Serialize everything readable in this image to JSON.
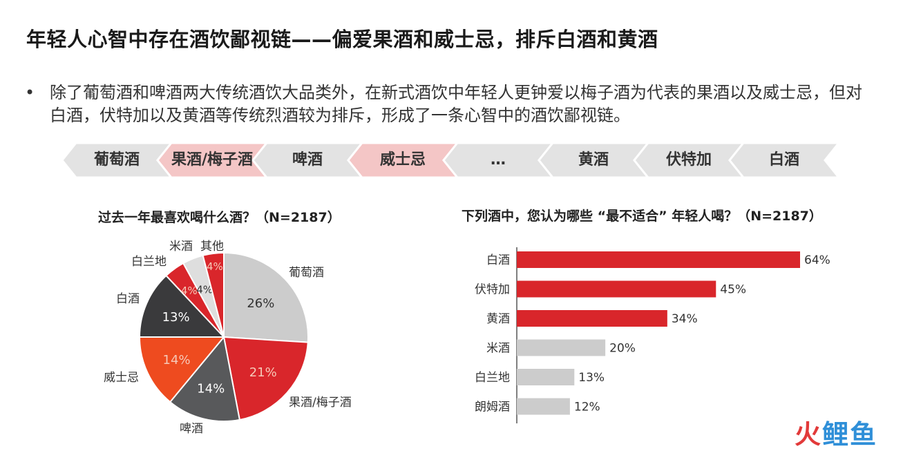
{
  "header": {
    "title": "年轻人心智中存在酒饮鄙视链——偏爱果酒和威士忌，排斥白酒和黄酒"
  },
  "intro": {
    "bullet_symbol": "•",
    "text": "除了葡萄酒和啤酒两大传统酒饮大品类外，在新式酒饮中年轻人更钟爱以梅子酒为代表的果酒以及威士忌，但对白酒，伏特加以及黄酒等传统烈酒较为排斥，形成了一条心智中的酒饮鄙视链。"
  },
  "chain": {
    "items": [
      {
        "label": "葡萄酒",
        "highlight": false
      },
      {
        "label": "果酒/梅子酒",
        "highlight": true
      },
      {
        "label": "啤酒",
        "highlight": false
      },
      {
        "label": "威士忌",
        "highlight": true
      },
      {
        "label": "…",
        "highlight": false
      },
      {
        "label": "黄酒",
        "highlight": false
      },
      {
        "label": "伏特加",
        "highlight": false
      },
      {
        "label": "白酒",
        "highlight": false
      }
    ],
    "colors": {
      "normal": "#e3e3e3",
      "highlight": "#f4c6c6"
    }
  },
  "chart_data": [
    {
      "type": "pie",
      "title": "过去一年最喜欢喝什么酒？（N=2187）",
      "slices": [
        {
          "label": "葡萄酒",
          "value": 26,
          "value_label": "26%",
          "color": "#cccccc"
        },
        {
          "label": "果酒/梅子酒",
          "value": 21,
          "value_label": "21%",
          "color": "#d9262b"
        },
        {
          "label": "啤酒",
          "value": 14,
          "value_label": "14%",
          "color": "#58595b"
        },
        {
          "label": "威士忌",
          "value": 14,
          "value_label": "14%",
          "color": "#ee4b1f"
        },
        {
          "label": "白酒",
          "value": 13,
          "value_label": "13%",
          "color": "#3a3a3c"
        },
        {
          "label": "白兰地",
          "value": 4,
          "value_label": "4%",
          "color": "#d9262b"
        },
        {
          "label": "米酒",
          "value": 4,
          "value_label": "4%",
          "color": "#dedede"
        },
        {
          "label": "其他",
          "value": 4,
          "value_label": "4%",
          "color": "#d9262b"
        }
      ]
    },
    {
      "type": "bar",
      "orientation": "horizontal",
      "title": "下列酒中，您认为哪些 “最不适合” 年轻人喝？（N=2187）",
      "categories": [
        "白酒",
        "伏特加",
        "黄酒",
        "米酒",
        "白兰地",
        "朗姆酒"
      ],
      "values": [
        64,
        45,
        34,
        20,
        13,
        12
      ],
      "value_labels": [
        "64%",
        "45%",
        "34%",
        "20%",
        "13%",
        "12%"
      ],
      "colors": [
        "#d9262b",
        "#d9262b",
        "#d9262b",
        "#cccccc",
        "#cccccc",
        "#cccccc"
      ],
      "xlim": [
        0,
        64
      ]
    }
  ],
  "watermark": {
    "part1": "火",
    "part2": "鲤鱼"
  }
}
